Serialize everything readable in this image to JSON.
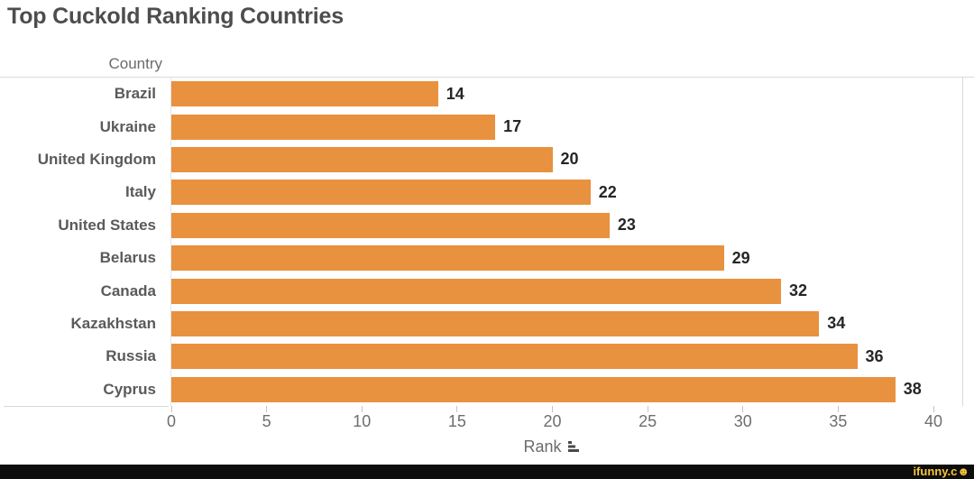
{
  "chart_data": {
    "type": "bar",
    "orientation": "horizontal",
    "title": "Top Cuckold Ranking Countries",
    "category_axis_label": "Country",
    "value_axis_label": "Rank",
    "categories": [
      "Brazil",
      "Ukraine",
      "United Kingdom",
      "Italy",
      "United States",
      "Belarus",
      "Canada",
      "Kazakhstan",
      "Russia",
      "Cyprus"
    ],
    "values": [
      14,
      17,
      20,
      22,
      23,
      29,
      32,
      34,
      36,
      38
    ],
    "data_labels": [
      14,
      17,
      20,
      22,
      23,
      29,
      32,
      34,
      36,
      38
    ],
    "x_ticks": [
      0,
      5,
      10,
      15,
      20,
      25,
      30,
      35,
      40
    ],
    "xlim": [
      0,
      40
    ],
    "grid": false,
    "legend": "none",
    "bar_color": "#E8913E"
  },
  "footer": {
    "watermark_text": "ifunny.c",
    "watermark_smiley": "☻"
  },
  "colors": {
    "bar": "#E8913E",
    "title_text": "#4D4D4D",
    "axis_text": "#6E6E6E",
    "footer_bg": "#0D0D0D",
    "watermark": "#F6C53E"
  }
}
